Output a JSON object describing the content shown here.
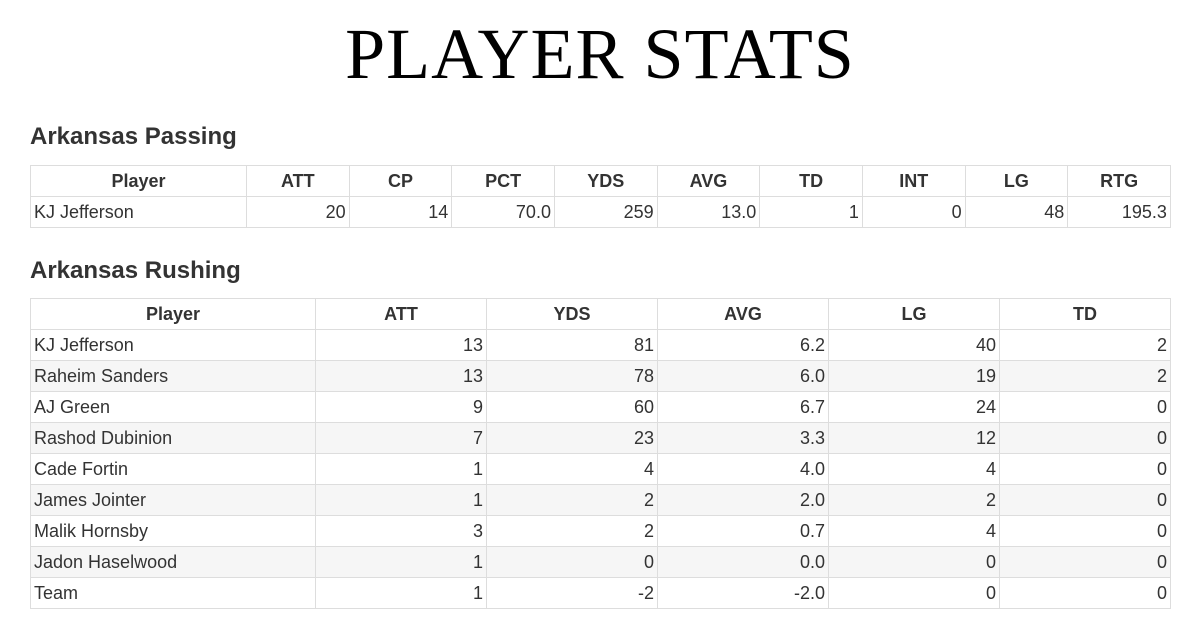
{
  "header": {
    "title": "PLAYER STATS"
  },
  "tables": [
    {
      "title": "Arkansas Passing",
      "columns": [
        "Player",
        "ATT",
        "CP",
        "PCT",
        "YDS",
        "AVG",
        "TD",
        "INT",
        "LG",
        "RTG"
      ],
      "rows": [
        [
          "KJ Jefferson",
          "20",
          "14",
          "70.0",
          "259",
          "13.0",
          "1",
          "0",
          "48",
          "195.3"
        ]
      ]
    },
    {
      "title": "Arkansas Rushing",
      "columns": [
        "Player",
        "ATT",
        "YDS",
        "AVG",
        "LG",
        "TD"
      ],
      "rows": [
        [
          "KJ Jefferson",
          "13",
          "81",
          "6.2",
          "40",
          "2"
        ],
        [
          "Raheim Sanders",
          "13",
          "78",
          "6.0",
          "19",
          "2"
        ],
        [
          "AJ Green",
          "9",
          "60",
          "6.7",
          "24",
          "0"
        ],
        [
          "Rashod Dubinion",
          "7",
          "23",
          "3.3",
          "12",
          "0"
        ],
        [
          "Cade Fortin",
          "1",
          "4",
          "4.0",
          "4",
          "0"
        ],
        [
          "James Jointer",
          "1",
          "2",
          "2.0",
          "2",
          "0"
        ],
        [
          "Malik Hornsby",
          "3",
          "2",
          "0.7",
          "4",
          "0"
        ],
        [
          "Jadon Haselwood",
          "1",
          "0",
          "0.0",
          "0",
          "0"
        ],
        [
          "Team",
          "1",
          "-2",
          "-2.0",
          "0",
          "0"
        ]
      ]
    }
  ]
}
